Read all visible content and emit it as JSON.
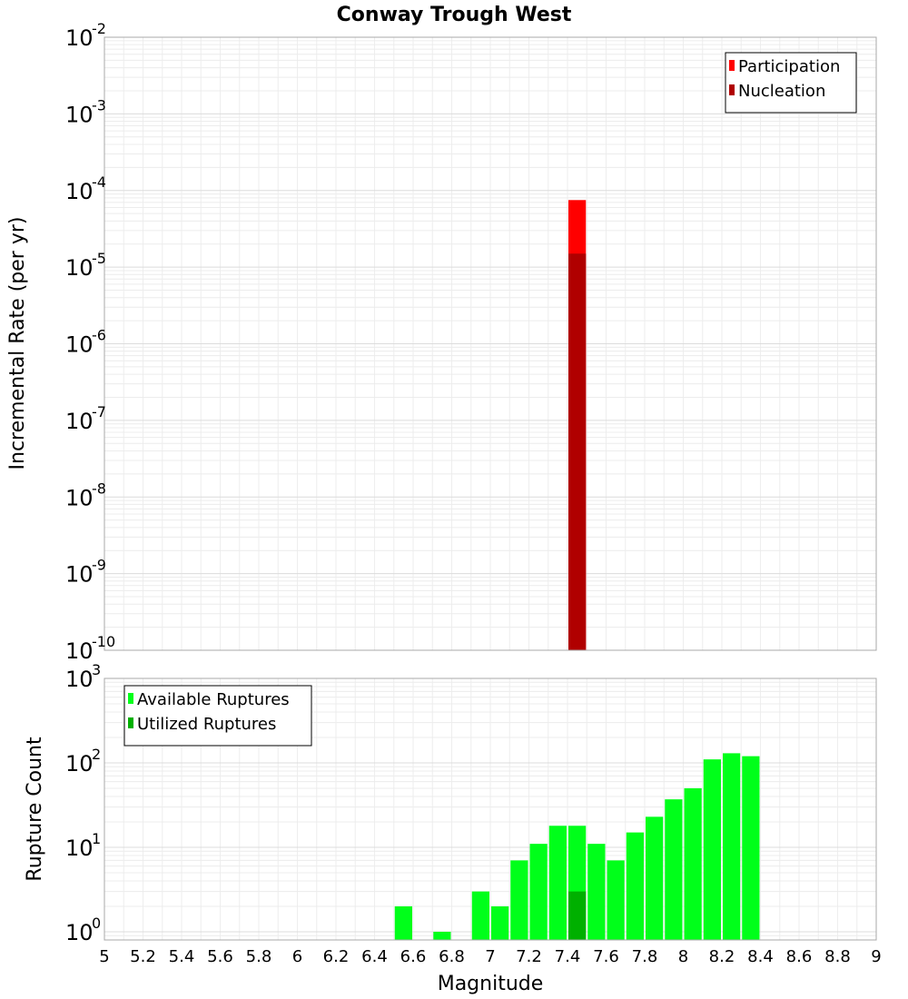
{
  "title": "Conway Trough West",
  "chart_data": [
    {
      "type": "bar",
      "name": "rate-panel",
      "yscale": "log",
      "ylabel": "Incremental Rate (per yr)",
      "xlabel": "",
      "xlim": [
        5,
        9
      ],
      "ylim": [
        1e-10,
        0.01
      ],
      "y_ticks": [
        {
          "base": "10",
          "exp": "-10",
          "value": 1e-10
        },
        {
          "base": "10",
          "exp": "-9",
          "value": 1e-09
        },
        {
          "base": "10",
          "exp": "-8",
          "value": 1e-08
        },
        {
          "base": "10",
          "exp": "-7",
          "value": 1e-07
        },
        {
          "base": "10",
          "exp": "-6",
          "value": 1e-06
        },
        {
          "base": "10",
          "exp": "-5",
          "value": 1e-05
        },
        {
          "base": "10",
          "exp": "-4",
          "value": 0.0001
        },
        {
          "base": "10",
          "exp": "-3",
          "value": 0.001
        },
        {
          "base": "10",
          "exp": "-2",
          "value": 0.01
        }
      ],
      "bin_width": 0.1,
      "series": [
        {
          "name": "Participation",
          "color": "#ff0000",
          "x": [
            7.45
          ],
          "values": [
            7.5e-05
          ]
        },
        {
          "name": "Nucleation",
          "color": "#b00000",
          "x": [
            7.45
          ],
          "values": [
            1.5e-05
          ]
        }
      ],
      "legend": {
        "position": "top-right",
        "items": [
          {
            "label": "Participation",
            "color": "#ff0000"
          },
          {
            "label": "Nucleation",
            "color": "#b00000"
          }
        ]
      }
    },
    {
      "type": "bar",
      "name": "count-panel",
      "yscale": "log",
      "ylabel": "Rupture Count",
      "xlabel": "Magnitude",
      "xlim": [
        5,
        9
      ],
      "ylim": [
        0.8,
        1000
      ],
      "y_ticks": [
        {
          "base": "10",
          "exp": "0",
          "value": 1
        },
        {
          "base": "10",
          "exp": "1",
          "value": 10
        },
        {
          "base": "10",
          "exp": "2",
          "value": 100
        },
        {
          "base": "10",
          "exp": "3",
          "value": 1000
        }
      ],
      "x_ticks": [
        "5",
        "5.2",
        "5.4",
        "5.6",
        "5.8",
        "6",
        "6.2",
        "6.4",
        "6.6",
        "6.8",
        "7",
        "7.2",
        "7.4",
        "7.6",
        "7.8",
        "8",
        "8.2",
        "8.4",
        "8.6",
        "8.8",
        "9"
      ],
      "bin_width": 0.1,
      "series": [
        {
          "name": "Available Ruptures",
          "color": "#00ff1a",
          "x": [
            6.55,
            6.75,
            6.95,
            7.05,
            7.15,
            7.25,
            7.35,
            7.45,
            7.55,
            7.65,
            7.75,
            7.85,
            7.95,
            8.05,
            8.15,
            8.25,
            8.35
          ],
          "values": [
            2,
            1,
            3,
            2,
            7,
            11,
            18,
            18,
            11,
            7,
            15,
            23,
            37,
            50,
            110,
            130,
            120
          ]
        },
        {
          "name": "Utilized Ruptures",
          "color": "#00b000",
          "x": [
            7.45
          ],
          "values": [
            3
          ]
        }
      ],
      "legend": {
        "position": "top-left",
        "items": [
          {
            "label": "Available Ruptures",
            "color": "#00ff1a"
          },
          {
            "label": "Utilized Ruptures",
            "color": "#00b000"
          }
        ]
      }
    }
  ]
}
